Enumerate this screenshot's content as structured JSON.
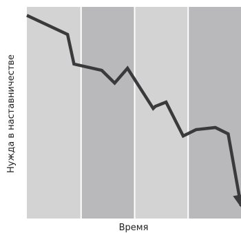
{
  "chart_data": {
    "type": "line",
    "xlabel": "Время",
    "ylabel": "Нужда в наставничестве",
    "ylim": [
      0,
      100
    ],
    "xlim": [
      0,
      100
    ],
    "bands": [
      {
        "x0": 0,
        "x1": 25,
        "color": "#d3d3d3"
      },
      {
        "x0": 25,
        "x1": 50,
        "color": "#b9b9bb"
      },
      {
        "x0": 50,
        "x1": 75,
        "color": "#d3d3d3"
      },
      {
        "x0": 75,
        "x1": 100,
        "color": "#b9b9bb"
      }
    ],
    "series": [
      {
        "color": "#3a3a3c",
        "arrow_end": true,
        "x": [
          0,
          19,
          22,
          35,
          41,
          47,
          59,
          60,
          65,
          73,
          79,
          88,
          94,
          100
        ],
        "y": [
          96,
          87,
          73,
          70,
          64,
          71,
          52,
          53,
          55,
          39,
          42,
          43,
          40,
          6
        ]
      }
    ]
  }
}
